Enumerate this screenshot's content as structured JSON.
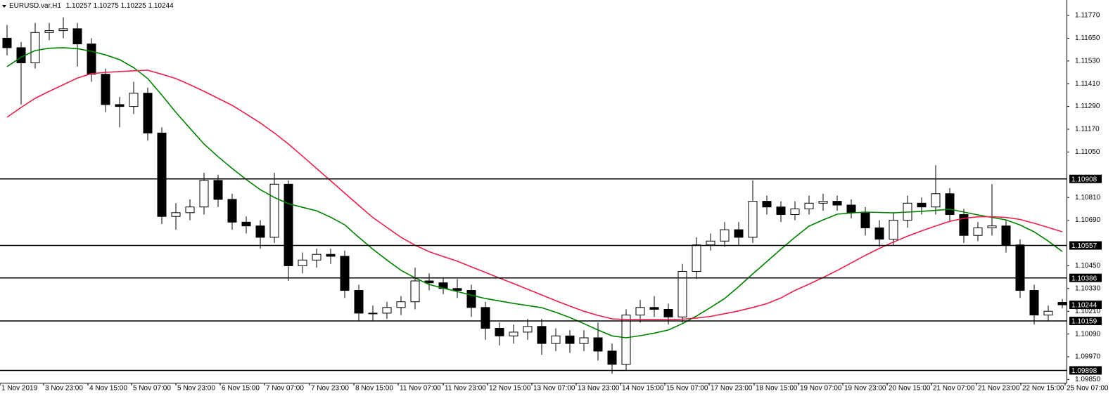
{
  "chart_data": {
    "type": "candlestick",
    "symbol": "EURUSD.var,H1",
    "open": [
      1.1165,
      1.116,
      1.1152,
      1.1168,
      1.1169,
      1.117,
      1.1162,
      1.1146,
      1.113,
      1.1129,
      1.1136,
      1.1115,
      1.1071,
      1.1073,
      1.1076,
      1.109,
      1.108,
      1.1068,
      1.1066,
      1.106,
      1.1088,
      1.1045,
      1.1048,
      1.1051,
      1.105,
      1.1032,
      1.102,
      1.102,
      1.1023,
      1.1026,
      1.1037,
      1.1036,
      1.1033,
      1.1032,
      1.1023,
      1.1012,
      1.1008,
      1.101,
      1.1013,
      1.1004,
      1.1008,
      1.1004,
      1.1007,
      1.1,
      1.0993,
      1.1019,
      1.1023,
      1.1022,
      1.1018,
      1.1042,
      1.1056,
      1.1058,
      1.1064,
      1.106,
      1.1079,
      1.1076,
      1.1072,
      1.1075,
      1.1078,
      1.1079,
      1.1077,
      1.1073,
      1.1065,
      1.1059,
      1.1069,
      1.1078,
      1.1076,
      1.1083,
      1.1072,
      1.1061,
      1.1065,
      1.1066,
      1.1056,
      1.1032,
      1.1019,
      1.10257
    ],
    "high": [
      1.1172,
      1.1163,
      1.1173,
      1.1173,
      1.1176,
      1.1173,
      1.1165,
      1.1149,
      1.1134,
      1.1142,
      1.1139,
      1.1118,
      1.1078,
      1.108,
      1.1094,
      1.1093,
      1.1083,
      1.1071,
      1.1069,
      1.1094,
      1.109,
      1.1052,
      1.1054,
      1.1054,
      1.1053,
      1.1035,
      1.1024,
      1.1026,
      1.1029,
      1.1044,
      1.1041,
      1.1039,
      1.1038,
      1.1035,
      1.1026,
      1.1015,
      1.1014,
      1.1017,
      1.1017,
      1.1012,
      1.1011,
      1.1011,
      1.1015,
      1.1004,
      1.1022,
      1.1027,
      1.1029,
      1.1025,
      1.1046,
      1.106,
      1.1062,
      1.1068,
      1.1068,
      1.109,
      1.1082,
      1.1079,
      1.1079,
      1.1082,
      1.1083,
      1.1082,
      1.108,
      1.1076,
      1.1069,
      1.1073,
      1.1082,
      1.1081,
      1.1098,
      1.1086,
      1.1075,
      1.1068,
      1.1088,
      1.1069,
      1.1059,
      1.1035,
      1.1024,
      1.10275
    ],
    "low": [
      1.1156,
      1.113,
      1.1149,
      1.1164,
      1.1165,
      1.115,
      1.1142,
      1.1126,
      1.1118,
      1.1125,
      1.1111,
      1.1067,
      1.1064,
      1.1069,
      1.1072,
      1.1076,
      1.1064,
      1.1062,
      1.1054,
      1.1057,
      1.1037,
      1.1041,
      1.1044,
      1.1046,
      1.1028,
      1.1016,
      1.1016,
      1.1017,
      1.1019,
      1.1022,
      1.1032,
      1.103,
      1.1028,
      1.1018,
      1.1006,
      1.1003,
      1.1004,
      1.1006,
      1.0998,
      1.1,
      1.0999,
      1.1,
      1.0995,
      1.0988,
      1.099,
      1.1015,
      1.1018,
      1.1014,
      1.1015,
      1.1038,
      1.1053,
      1.1055,
      1.1056,
      1.1057,
      1.1072,
      1.1068,
      1.1069,
      1.1072,
      1.1074,
      1.1074,
      1.107,
      1.1061,
      1.1055,
      1.1056,
      1.1065,
      1.1072,
      1.1072,
      1.1068,
      1.1057,
      1.1058,
      1.1061,
      1.1052,
      1.1028,
      1.1014,
      1.1016,
      1.10225
    ],
    "close": [
      1.116,
      1.1152,
      1.1168,
      1.1169,
      1.117,
      1.1162,
      1.1146,
      1.113,
      1.1129,
      1.1136,
      1.1115,
      1.1071,
      1.1073,
      1.1076,
      1.109,
      1.108,
      1.1068,
      1.1066,
      1.106,
      1.1088,
      1.1045,
      1.1048,
      1.1051,
      1.105,
      1.1032,
      1.102,
      1.102,
      1.1023,
      1.1026,
      1.1037,
      1.1036,
      1.1033,
      1.1032,
      1.1023,
      1.1012,
      1.1008,
      1.101,
      1.1013,
      1.1004,
      1.1008,
      1.1004,
      1.1007,
      1.1,
      1.0993,
      1.1019,
      1.1023,
      1.1022,
      1.1018,
      1.1042,
      1.1056,
      1.1058,
      1.1064,
      1.106,
      1.1079,
      1.1076,
      1.1072,
      1.1075,
      1.1078,
      1.1079,
      1.1077,
      1.1073,
      1.1065,
      1.1059,
      1.1069,
      1.1078,
      1.1076,
      1.1083,
      1.1072,
      1.1061,
      1.1065,
      1.1066,
      1.1056,
      1.1032,
      1.1019,
      1.1021,
      1.10244
    ],
    "series": [
      {
        "color": "#008000",
        "values": [
          1.115,
          1.1155,
          1.11585,
          1.11597,
          1.116,
          1.11595,
          1.11581,
          1.11562,
          1.11537,
          1.11495,
          1.11437,
          1.1135,
          1.11259,
          1.11175,
          1.11092,
          1.11025,
          1.10963,
          1.10905,
          1.10851,
          1.1081,
          1.10777,
          1.10758,
          1.1074,
          1.10706,
          1.10666,
          1.106,
          1.10537,
          1.1048,
          1.10426,
          1.10386,
          1.10351,
          1.10332,
          1.10314,
          1.10295,
          1.10277,
          1.10264,
          1.10251,
          1.1024,
          1.10229,
          1.10205,
          1.10177,
          1.10145,
          1.10111,
          1.1008,
          1.1007,
          1.10081,
          1.10095,
          1.10111,
          1.10145,
          1.10185,
          1.1023,
          1.10277,
          1.1034,
          1.10407,
          1.10472,
          1.10537,
          1.106,
          1.10659,
          1.10692,
          1.10722,
          1.10728,
          1.10733,
          1.10731,
          1.10729,
          1.10733,
          1.10737,
          1.10742,
          1.10748,
          1.10733,
          1.10718,
          1.10705,
          1.10692,
          1.10665,
          1.10629,
          1.1058,
          1.10525
        ]
      },
      {
        "color": "#e8204a",
        "values": [
          1.11233,
          1.11285,
          1.11333,
          1.1137,
          1.11405,
          1.1144,
          1.11463,
          1.1147,
          1.11474,
          1.11478,
          1.11481,
          1.1146,
          1.11437,
          1.11405,
          1.1137,
          1.11333,
          1.11296,
          1.1125,
          1.11203,
          1.1115,
          1.11092,
          1.11028,
          1.10963,
          1.10898,
          1.10833,
          1.10768,
          1.10704,
          1.10652,
          1.106,
          1.10558,
          1.10524,
          1.10499,
          1.10474,
          1.10444,
          1.10415,
          1.10385,
          1.10356,
          1.10326,
          1.10296,
          1.10266,
          1.10237,
          1.1021,
          1.10188,
          1.1017,
          1.10166,
          1.10166,
          1.10166,
          1.10166,
          1.10168,
          1.10174,
          1.10183,
          1.10197,
          1.10212,
          1.1023,
          1.1025,
          1.1028,
          1.1032,
          1.10353,
          1.10388,
          1.10425,
          1.10465,
          1.10505,
          1.10542,
          1.10575,
          1.10606,
          1.10634,
          1.1066,
          1.10684,
          1.107,
          1.10708,
          1.10709,
          1.10705,
          1.10694,
          1.10674,
          1.10652,
          1.10629
        ]
      }
    ],
    "levels": [
      1.10908,
      1.10557,
      1.10386,
      1.10159,
      1.09898
    ],
    "up_color": "#ffffff",
    "down_color": "#000000",
    "level_color": "#000000",
    "ylim": [
      1.09833,
      1.118515
    ],
    "yticks": [
      {
        "value": 1.1177,
        "label": "1.11770"
      },
      {
        "value": 1.1165,
        "label": "1.11650"
      },
      {
        "value": 1.1153,
        "label": "1.11530"
      },
      {
        "value": 1.1141,
        "label": "1.11410"
      },
      {
        "value": 1.1129,
        "label": "1.11290"
      },
      {
        "value": 1.1117,
        "label": "1.11170"
      },
      {
        "value": 1.1105,
        "label": "1.11050"
      },
      {
        "value": 1.1081,
        "label": "1.10810"
      },
      {
        "value": 1.1069,
        "label": "1.10690"
      },
      {
        "value": 1.1045,
        "label": "1.10450"
      },
      {
        "value": 1.1033,
        "label": "1.10330"
      },
      {
        "value": 1.1021,
        "label": "1.10210"
      },
      {
        "value": 1.1009,
        "label": "1.10090"
      },
      {
        "value": 1.0997,
        "label": "1.09970"
      },
      {
        "value": 1.0985,
        "label": "1.09850"
      }
    ],
    "xlim": [
      -0.5,
      75.3
    ],
    "xticks": [
      {
        "value": -0.5,
        "label": "1 Nov 2019"
      },
      {
        "value": 2.6,
        "label": "3 Nov 23:00"
      },
      {
        "value": 5.75,
        "label": "4 Nov 15:00"
      },
      {
        "value": 8.85,
        "label": "5 Nov 07:00"
      },
      {
        "value": 12,
        "label": "5 Nov 23:00"
      },
      {
        "value": 15.15,
        "label": "6 Nov 15:00"
      },
      {
        "value": 18.3,
        "label": "7 Nov 07:00"
      },
      {
        "value": 21.5,
        "label": "7 Nov 23:00"
      },
      {
        "value": 24.65,
        "label": "8 Nov 15:00"
      },
      {
        "value": 27.8,
        "label": "11 Nov 07:00"
      },
      {
        "value": 31,
        "label": "11 Nov 23:00"
      },
      {
        "value": 34.15,
        "label": "12 Nov 15:00"
      },
      {
        "value": 37.3,
        "label": "13 Nov 07:00"
      },
      {
        "value": 40.45,
        "label": "13 Nov 23:00"
      },
      {
        "value": 43.6,
        "label": "14 Nov 15:00"
      },
      {
        "value": 46.75,
        "label": "15 Nov 07:00"
      },
      {
        "value": 49.9,
        "label": "17 Nov 23:00"
      },
      {
        "value": 53.1,
        "label": "18 Nov 15:00"
      },
      {
        "value": 56.25,
        "label": "19 Nov 07:00"
      },
      {
        "value": 59.4,
        "label": "19 Nov 23:00"
      },
      {
        "value": 62.55,
        "label": "20 Nov 15:00"
      },
      {
        "value": 65.7,
        "label": "21 Nov 07:00"
      },
      {
        "value": 68.9,
        "label": "21 Nov 23:00"
      },
      {
        "value": 72.05,
        "label": "22 Nov 15:00"
      },
      {
        "value": 75.2,
        "label": "25 Nov 07:00"
      }
    ]
  }
}
